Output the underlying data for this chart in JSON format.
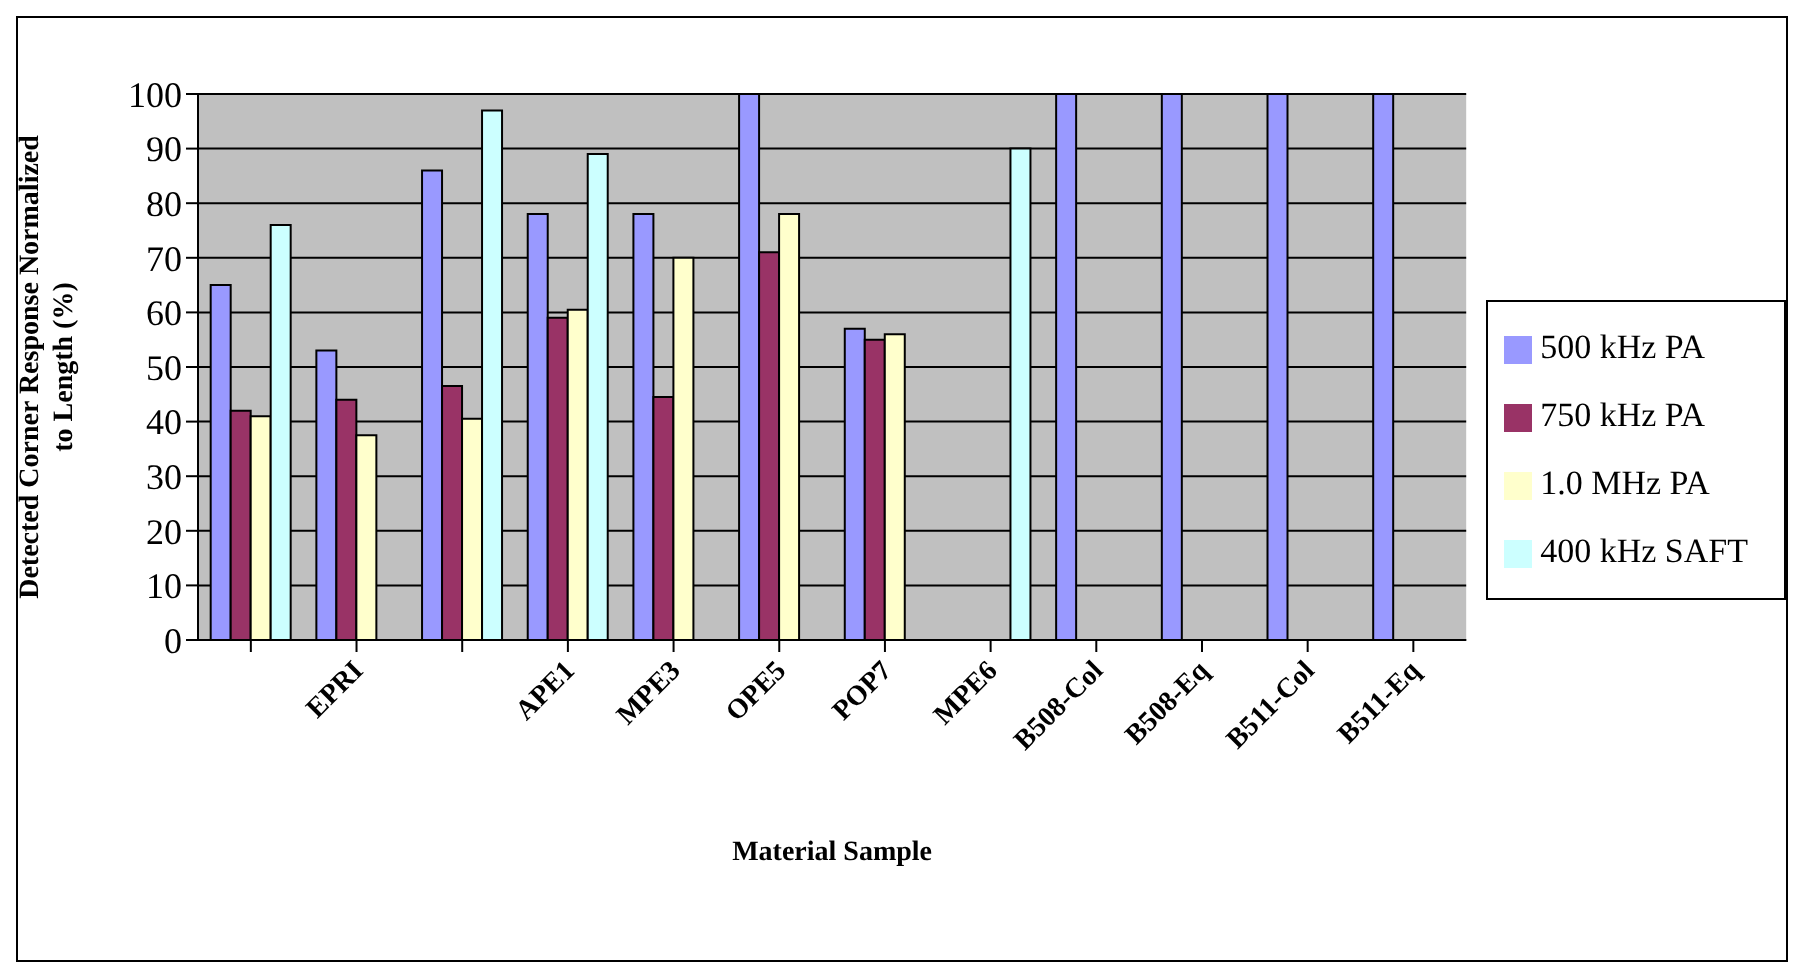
{
  "chart_data": {
    "type": "bar",
    "xlabel": "Material Sample",
    "ylabel": "Detected Corner Response Normalized to Length (%)",
    "categories": [
      null,
      "EPRI",
      null,
      "APE1",
      "MPE3",
      "OPE5",
      "POP7",
      "MPE6",
      "B508-Col",
      "B508-Eq",
      "B511-Col",
      "B511-Eq"
    ],
    "series": [
      {
        "name": "500 kHz PA",
        "color": "#9999ff",
        "values": [
          65,
          53,
          86,
          78,
          78,
          100,
          57,
          null,
          100,
          100,
          100,
          100
        ]
      },
      {
        "name": "750 kHz PA",
        "color": "#993366",
        "values": [
          42,
          44,
          46.5,
          59,
          44.5,
          71,
          55,
          null,
          null,
          null,
          null,
          null
        ]
      },
      {
        "name": "1.0 MHz PA",
        "color": "#ffffcc",
        "values": [
          41,
          37.5,
          40.5,
          60.5,
          70,
          78,
          56,
          null,
          null,
          null,
          null,
          null
        ]
      },
      {
        "name": "400 kHz SAFT",
        "color": "#ccffff",
        "values": [
          76,
          null,
          97,
          89,
          null,
          null,
          null,
          90,
          null,
          null,
          null,
          null
        ]
      }
    ],
    "ylim": [
      0,
      100
    ],
    "yticks": [
      0,
      10,
      20,
      30,
      40,
      50,
      60,
      70,
      80,
      90,
      100
    ],
    "grid": "y",
    "legend": "right"
  }
}
